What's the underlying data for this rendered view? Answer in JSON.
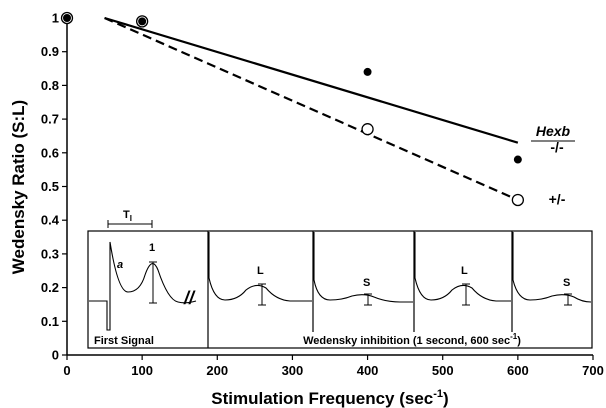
{
  "chart_data": {
    "type": "scatter",
    "xlabel": "Stimulation Frequency (sec",
    "xlabel_sup": "-1",
    "xlabel_tail": ")",
    "ylabel": "Wedensky Ratio (S:L)",
    "xlim": [
      0,
      700
    ],
    "ylim": [
      0,
      1
    ],
    "x_ticks": [
      {
        "value": 0,
        "label": "0"
      },
      {
        "value": 100,
        "label": "100"
      },
      {
        "value": 200,
        "label": "200"
      },
      {
        "value": 300,
        "label": "300"
      },
      {
        "value": 400,
        "label": "400"
      },
      {
        "value": 500,
        "label": "500"
      },
      {
        "value": 600,
        "label": "600"
      },
      {
        "value": 700,
        "label": "700"
      }
    ],
    "y_ticks": [
      {
        "value": 0,
        "label": "0"
      },
      {
        "value": 0.1,
        "label": "0.1"
      },
      {
        "value": 0.2,
        "label": "0.2"
      },
      {
        "value": 0.3,
        "label": "0.3"
      },
      {
        "value": 0.4,
        "label": "0.4"
      },
      {
        "value": 0.5,
        "label": "0.5"
      },
      {
        "value": 0.6,
        "label": "0.6"
      },
      {
        "value": 0.7,
        "label": "0.7"
      },
      {
        "value": 0.8,
        "label": "0.8"
      },
      {
        "value": 0.9,
        "label": "0.9"
      },
      {
        "value": 1,
        "label": "1"
      }
    ],
    "grid": false,
    "legend": {
      "title": "Hexb",
      "position": "right",
      "entries": [
        "-/-",
        "+/-"
      ]
    },
    "series": [
      {
        "name": "-/-",
        "marker": "filled-circle",
        "points": [
          {
            "x": 0,
            "y": 1.0
          },
          {
            "x": 100,
            "y": 0.99
          },
          {
            "x": 400,
            "y": 0.84
          },
          {
            "x": 600,
            "y": 0.58
          }
        ],
        "fit": {
          "style": "solid",
          "from": [
            50,
            1.0
          ],
          "to": [
            600,
            0.63
          ]
        }
      },
      {
        "name": "+/-",
        "marker": "open-circle",
        "points": [
          {
            "x": 0,
            "y": 1.0
          },
          {
            "x": 100,
            "y": 0.99
          },
          {
            "x": 400,
            "y": 0.67
          },
          {
            "x": 600,
            "y": 0.46
          }
        ],
        "fit": {
          "style": "dashed",
          "from": [
            50,
            1.0
          ],
          "to": [
            600,
            0.46
          ]
        }
      }
    ],
    "inset": {
      "scale_label": "T",
      "scale_label_sub": "I",
      "trace_label": "a",
      "first_peak_label": "1",
      "panel_labels": [
        "L",
        "S",
        "L",
        "S"
      ],
      "break_symbol": "//",
      "caption_left": "First Signal",
      "caption_right": "Wedensky inhibition (1 second, 600 sec",
      "caption_right_sup": "-1",
      "caption_right_tail": ")"
    }
  }
}
